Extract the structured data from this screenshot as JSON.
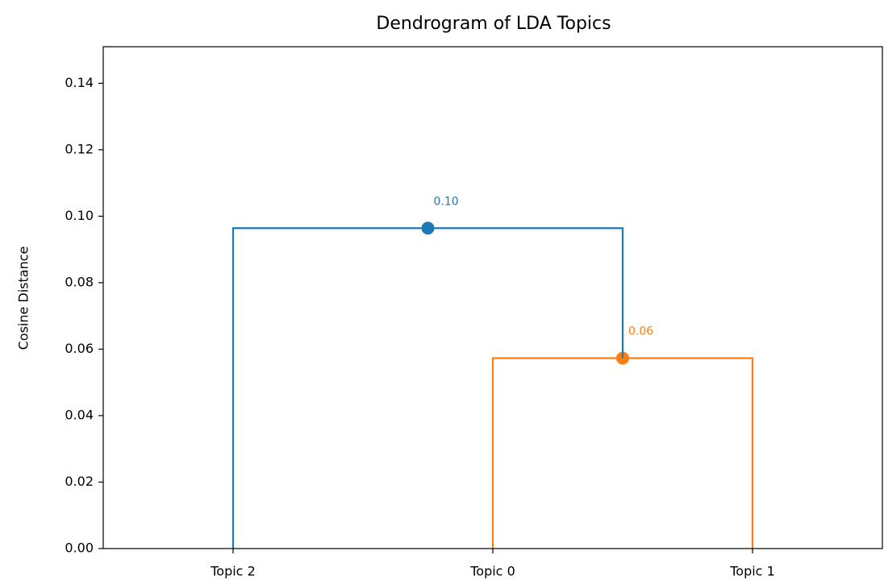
{
  "chart_data": {
    "type": "dendrogram",
    "title": "Dendrogram of LDA Topics",
    "y_label": "Cosine Distance",
    "xlim": [
      0,
      30
    ],
    "xticks": [
      {
        "value": 5,
        "label": "Topic 2"
      },
      {
        "value": 15,
        "label": "Topic 0"
      },
      {
        "value": 25,
        "label": "Topic 1"
      }
    ],
    "ylim": [
      0,
      0.151
    ],
    "yticks": [
      {
        "value": 0,
        "label": "0.00"
      },
      {
        "value": 0.02,
        "label": "0.02"
      },
      {
        "value": 0.04,
        "label": "0.04"
      },
      {
        "value": 0.06,
        "label": "0.06"
      },
      {
        "value": 0.08,
        "label": "0.08"
      },
      {
        "value": 0.1,
        "label": "0.10"
      },
      {
        "value": 0.12,
        "label": "0.12"
      },
      {
        "value": 0.14,
        "label": "0.14"
      }
    ],
    "links": [
      {
        "color": "#ff7f0e",
        "x": [
          15,
          15,
          25,
          25
        ],
        "values": [
          0,
          0.0573,
          0.0573,
          0
        ],
        "value_label": "0.06"
      },
      {
        "color": "#1f77b4",
        "x": [
          5,
          5,
          20,
          20
        ],
        "values": [
          0,
          0.0964,
          0.0964,
          0.0573
        ],
        "value_label": "0.10"
      }
    ]
  }
}
